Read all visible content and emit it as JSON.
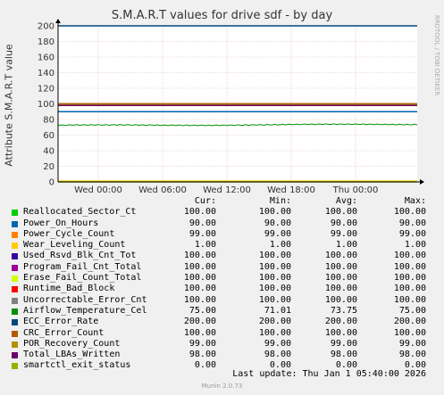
{
  "chart_data": {
    "type": "line",
    "title": "S.M.A.R.T values for drive sdf - by day",
    "ylabel": "Attribute S.M.A.R.T value",
    "ylim": [
      0,
      200
    ],
    "yticks": [
      0,
      20,
      40,
      60,
      80,
      100,
      120,
      140,
      160,
      180,
      200
    ],
    "xlabels": [
      "Wed 00:00",
      "Wed 06:00",
      "Wed 12:00",
      "Wed 18:00",
      "Thu 00:00"
    ],
    "grid": true,
    "columns": [
      "Cur:",
      "Min:",
      "Avg:",
      "Max:"
    ],
    "series": [
      {
        "name": "Reallocated_Sector_Ct",
        "color": "#00cc00",
        "cur": "100.00",
        "min": "100.00",
        "avg": "100.00",
        "max": "100.00",
        "value": 100
      },
      {
        "name": "Power_On_Hours",
        "color": "#0066b3",
        "cur": "90.00",
        "min": "90.00",
        "avg": "90.00",
        "max": "90.00",
        "value": 90
      },
      {
        "name": "Power_Cycle_Count",
        "color": "#ff8000",
        "cur": "99.00",
        "min": "99.00",
        "avg": "99.00",
        "max": "99.00",
        "value": 99
      },
      {
        "name": "Wear_Leveling_Count",
        "color": "#ffcc00",
        "cur": "1.00",
        "min": "1.00",
        "avg": "1.00",
        "max": "1.00",
        "value": 1
      },
      {
        "name": "Used_Rsvd_Blk_Cnt_Tot",
        "color": "#330099",
        "cur": "100.00",
        "min": "100.00",
        "avg": "100.00",
        "max": "100.00",
        "value": 100
      },
      {
        "name": "Program_Fail_Cnt_Total",
        "color": "#990099",
        "cur": "100.00",
        "min": "100.00",
        "avg": "100.00",
        "max": "100.00",
        "value": 100
      },
      {
        "name": "Erase_Fail_Count_Total",
        "color": "#ccff00",
        "cur": "100.00",
        "min": "100.00",
        "avg": "100.00",
        "max": "100.00",
        "value": 100
      },
      {
        "name": "Runtime_Bad_Block",
        "color": "#ff0000",
        "cur": "100.00",
        "min": "100.00",
        "avg": "100.00",
        "max": "100.00",
        "value": 100
      },
      {
        "name": "Uncorrectable_Error_Cnt",
        "color": "#808080",
        "cur": "100.00",
        "min": "100.00",
        "avg": "100.00",
        "max": "100.00",
        "value": 100
      },
      {
        "name": "Airflow_Temperature_Cel",
        "color": "#008f00",
        "cur": "75.00",
        "min": "71.01",
        "avg": "73.75",
        "max": "75.00",
        "value": 73.75
      },
      {
        "name": "ECC_Error_Rate",
        "color": "#00487d",
        "cur": "200.00",
        "min": "200.00",
        "avg": "200.00",
        "max": "200.00",
        "value": 200
      },
      {
        "name": "CRC_Error_Count",
        "color": "#b35a00",
        "cur": "100.00",
        "min": "100.00",
        "avg": "100.00",
        "max": "100.00",
        "value": 100
      },
      {
        "name": "POR_Recovery_Count",
        "color": "#b38f00",
        "cur": "99.00",
        "min": "99.00",
        "avg": "99.00",
        "max": "99.00",
        "value": 99
      },
      {
        "name": "Total_LBAs_Written",
        "color": "#6b006b",
        "cur": "98.00",
        "min": "98.00",
        "avg": "98.00",
        "max": "98.00",
        "value": 98
      },
      {
        "name": "smartctl_exit_status",
        "color": "#8fb300",
        "cur": "0.00",
        "min": "0.00",
        "avg": "0.00",
        "max": "0.00",
        "value": 0
      }
    ]
  },
  "footer": {
    "last_update": "Last update: Thu Jan  1 05:40:00 2026",
    "generator": "Munin 2.0.73",
    "watermark": "RRDTOOL / TOBI OETIKER"
  }
}
